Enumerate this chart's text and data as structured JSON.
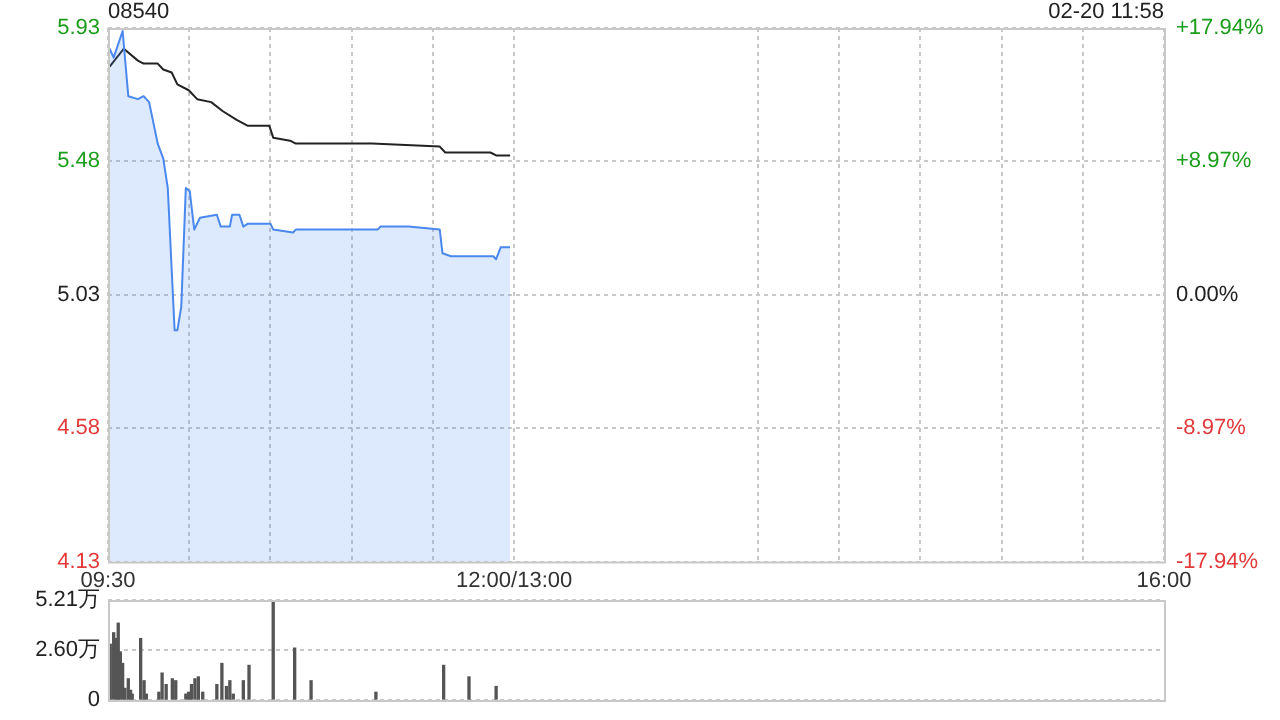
{
  "chart_data": [
    {
      "type": "area",
      "title": "08540",
      "annotations": [
        "02-20 11:58"
      ],
      "xlim": [
        9.5,
        16
      ],
      "xticks": [
        {
          "value": 9.5,
          "label": "09:30"
        },
        {
          "value": 10,
          "label": null
        },
        {
          "value": 10.5,
          "label": null
        },
        {
          "value": 11,
          "label": null
        },
        {
          "value": 11.5,
          "label": null
        },
        {
          "value": 12,
          "label": "12:00/13:00"
        },
        {
          "value": 13.5,
          "label": null
        },
        {
          "value": 14,
          "label": null
        },
        {
          "value": 14.5,
          "label": null
        },
        {
          "value": 15,
          "label": null
        },
        {
          "value": 15.5,
          "label": null
        },
        {
          "value": 16,
          "label": "16:00"
        }
      ],
      "ylim": [
        4.13,
        5.93
      ],
      "yticks": [
        4.13,
        4.58,
        5.03,
        5.48,
        5.93
      ],
      "y2lim": [
        -17.94,
        17.94
      ],
      "y2ticks": [
        {
          "value": -17.94,
          "label": "-17.94%"
        },
        {
          "value": -8.97,
          "label": "-8.97%"
        },
        {
          "value": 0,
          "label": "0.00%"
        },
        {
          "value": 8.97,
          "label": "+8.97%"
        },
        {
          "value": 17.94,
          "label": "+17.94%"
        }
      ],
      "grid": true,
      "series": [
        {
          "color": "#4a88ee",
          "x": [
            9.51,
            9.535,
            9.59,
            9.625,
            9.684,
            9.719,
            9.753,
            9.806,
            9.84,
            9.868,
            9.91,
            9.927,
            9.951,
            9.979,
            10.003,
            10.031,
            10.066,
            10.17,
            10.194,
            10.25,
            10.264,
            10.309,
            10.333,
            10.361,
            10.5,
            10.517,
            10.639,
            10.656,
            11.16,
            11.177,
            11.35,
            11.542,
            11.559,
            11.611,
            11.872,
            11.889,
            11.917,
            11.975
          ],
          "values": [
            5.86,
            5.83,
            5.92,
            5.7,
            5.69,
            5.7,
            5.68,
            5.54,
            5.49,
            5.39,
            4.91,
            4.91,
            4.99,
            5.39,
            5.38,
            5.25,
            5.29,
            5.3,
            5.26,
            5.26,
            5.3,
            5.3,
            5.26,
            5.27,
            5.27,
            5.25,
            5.24,
            5.25,
            5.25,
            5.26,
            5.26,
            5.25,
            5.17,
            5.16,
            5.16,
            5.15,
            5.19,
            5.19
          ]
        },
        {
          "type": "line",
          "color": "#222222",
          "x": [
            9.51,
            9.597,
            9.684,
            9.719,
            9.806,
            9.84,
            9.892,
            9.927,
            9.997,
            10.049,
            10.135,
            10.205,
            10.292,
            10.361,
            10.493,
            10.517,
            10.621,
            10.656,
            11.125,
            11.542,
            11.576,
            11.715,
            11.854,
            11.889,
            11.975
          ],
          "values": [
            5.8,
            5.86,
            5.82,
            5.81,
            5.81,
            5.79,
            5.78,
            5.74,
            5.72,
            5.69,
            5.68,
            5.65,
            5.62,
            5.6,
            5.6,
            5.56,
            5.55,
            5.54,
            5.54,
            5.53,
            5.51,
            5.51,
            5.51,
            5.5,
            5.5
          ]
        }
      ]
    },
    {
      "type": "bar",
      "xlim": [
        9.5,
        16
      ],
      "tick_labels": "y",
      "ylim": [
        0,
        5.21
      ],
      "yticks": [
        0,
        {
          "value": 2.6,
          "label": "2.60万"
        },
        {
          "value": 5.21,
          "label": "5.21万"
        }
      ],
      "grid": "y",
      "series": [
        {
          "color": "#555555",
          "x": [
            9.514,
            9.535,
            9.549,
            9.563,
            9.576,
            9.59,
            9.604,
            9.625,
            9.639,
            9.649,
            9.701,
            9.722,
            9.736,
            9.813,
            9.833,
            9.858,
            9.896,
            9.917,
            9.979,
            9.996,
            10.014,
            10.035,
            10.056,
            10.083,
            10.17,
            10.201,
            10.229,
            10.25,
            10.271,
            10.333,
            10.368,
            10.517,
            10.649,
            10.75,
            11.149,
            11.566,
            11.722,
            11.889
          ],
          "values": [
            2.9,
            3.5,
            3.2,
            4.0,
            2.5,
            1.9,
            0.6,
            1.1,
            0.5,
            0.3,
            3.2,
            1.0,
            0.3,
            0.4,
            1.4,
            0.8,
            1.1,
            1.0,
            0.3,
            0.4,
            0.8,
            1.1,
            1.2,
            0.4,
            0.8,
            1.9,
            0.7,
            1.0,
            0.3,
            1.0,
            1.8,
            5.2,
            2.7,
            1.0,
            0.4,
            1.8,
            1.2,
            0.7
          ]
        }
      ]
    }
  ]
}
